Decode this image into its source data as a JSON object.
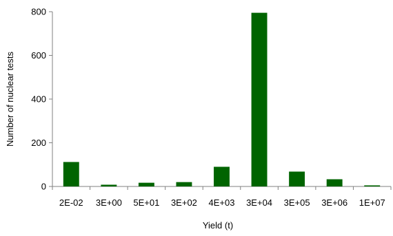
{
  "chart_data": {
    "type": "bar",
    "title": "",
    "xlabel": "Yield (t)",
    "ylabel": "Number of nuclear tests",
    "categories": [
      "2E-02",
      "3E+00",
      "5E+01",
      "3E+02",
      "4E+03",
      "3E+04",
      "3E+05",
      "3E+06",
      "1E+07"
    ],
    "values": [
      112,
      8,
      17,
      20,
      90,
      795,
      68,
      33,
      5
    ],
    "ylim": [
      0,
      800
    ],
    "yticks": [
      "0",
      "200",
      "400",
      "600",
      "800"
    ],
    "grid": false,
    "legend": "none",
    "bar_color": "#006400"
  }
}
